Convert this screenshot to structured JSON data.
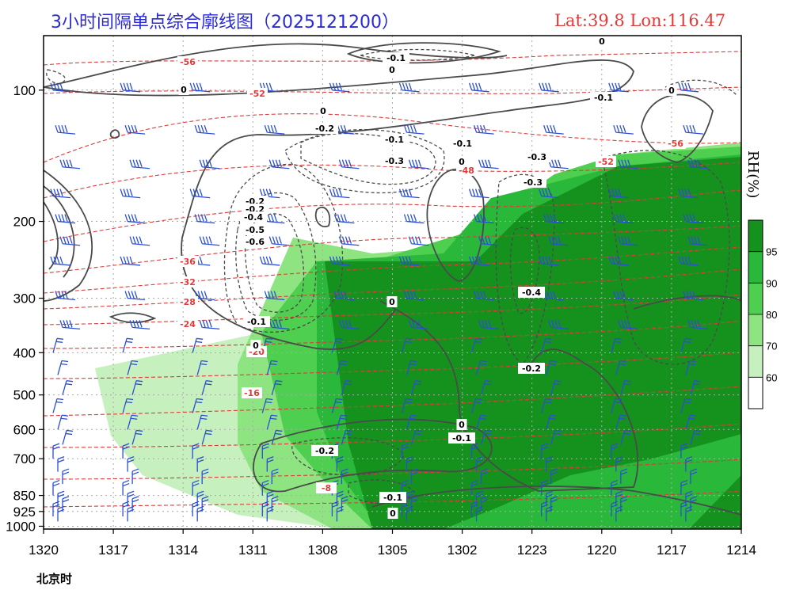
{
  "header": {
    "title": "3小时间隔单点综合廓线图（2025121200）",
    "location": "Lat:39.8  Lon:116.47"
  },
  "colorbar": {
    "title": "RH(%)",
    "ticks": [
      "60",
      "70",
      "80",
      "90",
      "95"
    ],
    "colors": [
      "#ffffff",
      "#c6f0bd",
      "#8fe482",
      "#4fcf4f",
      "#2ab83a",
      "#15921d"
    ]
  },
  "chart_data": {
    "type": "contour",
    "xlabel": "北京时",
    "x_ticks": [
      "1320",
      "1317",
      "1314",
      "1311",
      "1308",
      "1305",
      "1302",
      "1223",
      "1220",
      "1217",
      "1214"
    ],
    "y_ticks": [
      "100",
      "200",
      "300",
      "400",
      "500",
      "600",
      "700",
      "850",
      "925",
      "1000"
    ],
    "y_values": [
      100,
      200,
      300,
      400,
      500,
      600,
      700,
      850,
      925,
      1000
    ],
    "ylim": [
      75,
      1015
    ],
    "grid": true,
    "series": [
      {
        "variable": "temperature",
        "color": "#e03a3a",
        "labels": [
          "-56",
          "-52",
          "-56",
          "-52",
          "-48",
          "-36",
          "-32",
          "-28",
          "-24",
          "-20",
          "-16",
          "-8"
        ]
      },
      {
        "variable": "omega",
        "color": "#4a4a4a",
        "labels": [
          "0",
          "-0.1",
          "0",
          "0",
          "0",
          "-0.1",
          "0",
          "-0.2",
          "-0.1",
          "-0.3",
          "-0.1",
          "0",
          "-0.2",
          "-0.3",
          "-0.2",
          "-0.3",
          "-0.4",
          "-0.5",
          "-0.6",
          "-0.1",
          "0",
          "-0.4",
          "0",
          "-0.2",
          "0",
          "-0.1",
          "-0.2",
          "-0.1",
          "0"
        ]
      },
      {
        "variable": "wind",
        "color": "#2b4fd6"
      }
    ]
  }
}
